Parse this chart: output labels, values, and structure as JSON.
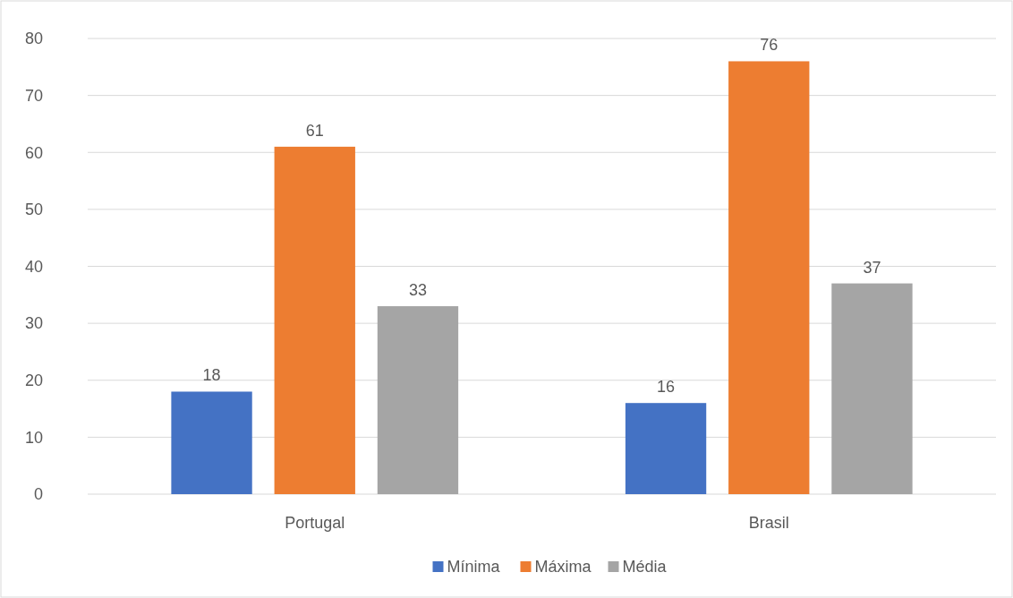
{
  "chart_data": {
    "type": "bar",
    "categories": [
      "Portugal",
      "Brasil"
    ],
    "series": [
      {
        "name": "Mínima",
        "color": "#4472c4",
        "values": [
          18,
          16
        ]
      },
      {
        "name": "Máxima",
        "color": "#ed7d31",
        "values": [
          61,
          76
        ]
      },
      {
        "name": "Média",
        "color": "#a5a5a5",
        "values": [
          33,
          37
        ]
      }
    ],
    "ylim": [
      0,
      80
    ],
    "yticks": [
      0,
      10,
      20,
      30,
      40,
      50,
      60,
      70,
      80
    ],
    "grid": "y",
    "legend": "bottom",
    "data_labels": true
  }
}
